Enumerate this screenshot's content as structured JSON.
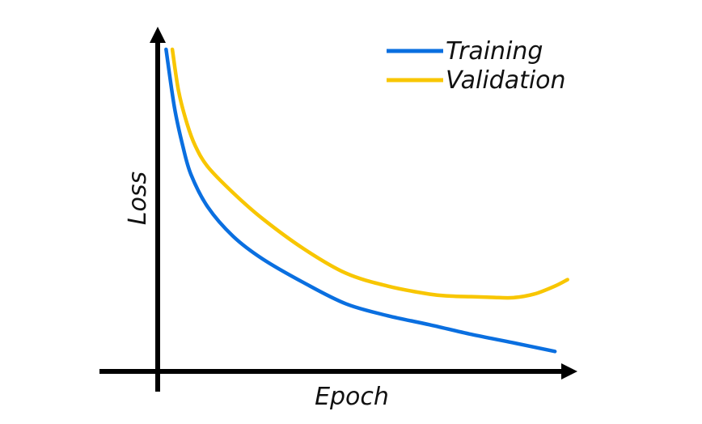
{
  "chart_data": {
    "type": "line",
    "title": "",
    "xlabel": "Epoch",
    "ylabel": "Loss",
    "xlim": [
      0,
      100
    ],
    "ylim": [
      0,
      100
    ],
    "x_ticks_shown": false,
    "y_ticks_shown": false,
    "grid": false,
    "legend_position": "top-right",
    "series": [
      {
        "name": "Training",
        "color": "#0a6fe0",
        "x": [
          2,
          4,
          6,
          8,
          12,
          18,
          25,
          35,
          45,
          55,
          65,
          75,
          85,
          95
        ],
        "y": [
          100,
          82,
          70,
          61,
          51,
          42,
          35,
          27.5,
          21,
          17.3,
          14.5,
          11.5,
          8.9,
          6.2
        ]
      },
      {
        "name": "Validation",
        "color": "#f8c600",
        "x": [
          3.5,
          5,
          7,
          9,
          12,
          18,
          25,
          35,
          45,
          55,
          65,
          70,
          75,
          80,
          85,
          90,
          95,
          98
        ],
        "y": [
          100,
          87,
          77,
          70,
          63.5,
          55.5,
          47.5,
          38,
          30.5,
          26.5,
          24,
          23.4,
          23.2,
          23,
          22.9,
          24,
          26.5,
          28.5
        ]
      }
    ]
  }
}
